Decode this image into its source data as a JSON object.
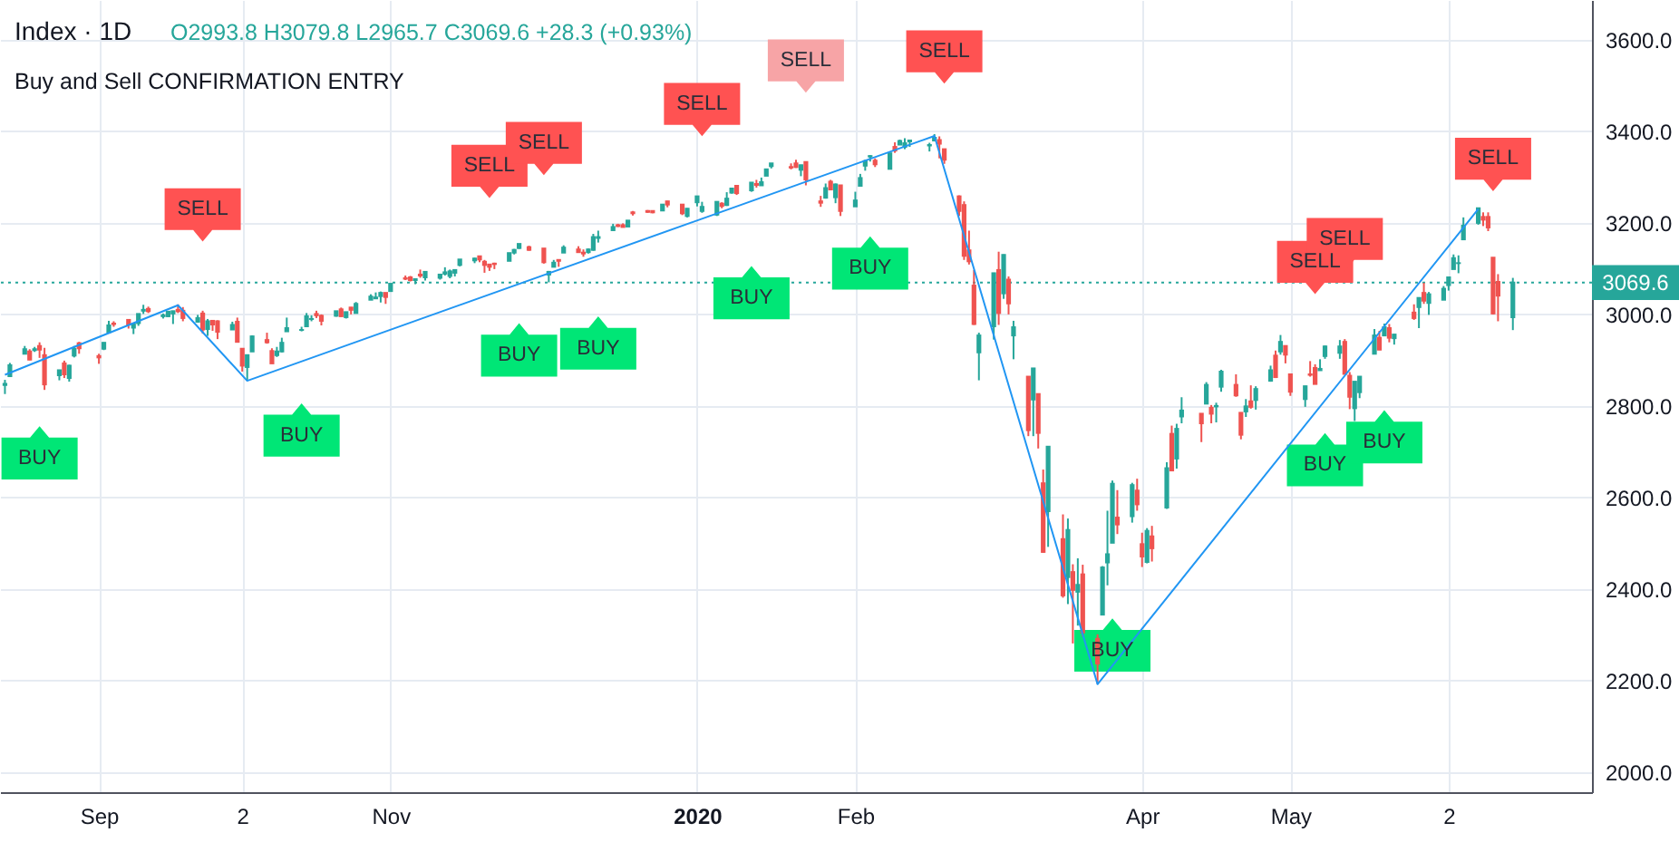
{
  "chart_data": {
    "type": "candlestick",
    "title": "Index · 1D",
    "subtitle": "Buy and Sell CONFIRMATION ENTRY",
    "annotations": [
      "O2993.8 H3079.8 L2965.7 C3069.6 +28.3 (+0.93%)"
    ],
    "x": [
      "2019-08-15",
      "2019-08-16",
      "2019-08-19",
      "2019-08-20",
      "2019-08-21",
      "2019-08-22",
      "2019-08-23",
      "2019-08-26",
      "2019-08-27",
      "2019-08-28",
      "2019-08-29",
      "2019-08-30",
      "2019-09-03",
      "2019-09-04",
      "2019-09-05",
      "2019-09-06",
      "2019-09-09",
      "2019-09-10",
      "2019-09-11",
      "2019-09-12",
      "2019-09-13",
      "2019-09-16",
      "2019-09-17",
      "2019-09-18",
      "2019-09-19",
      "2019-09-20",
      "2019-09-23",
      "2019-09-24",
      "2019-09-25",
      "2019-09-26",
      "2019-09-27",
      "2019-09-30",
      "2019-10-01",
      "2019-10-02",
      "2019-10-03",
      "2019-10-04",
      "2019-10-07",
      "2019-10-08",
      "2019-10-09",
      "2019-10-10",
      "2019-10-11",
      "2019-10-14",
      "2019-10-15",
      "2019-10-16",
      "2019-10-17",
      "2019-10-18",
      "2019-10-21",
      "2019-10-22",
      "2019-10-23",
      "2019-10-24",
      "2019-10-25",
      "2019-10-28",
      "2019-10-29",
      "2019-10-30",
      "2019-10-31",
      "2019-11-01",
      "2019-11-04",
      "2019-11-05",
      "2019-11-06",
      "2019-11-07",
      "2019-11-08",
      "2019-11-11",
      "2019-11-12",
      "2019-11-13",
      "2019-11-14",
      "2019-11-15",
      "2019-11-18",
      "2019-11-19",
      "2019-11-20",
      "2019-11-21",
      "2019-11-22",
      "2019-11-25",
      "2019-11-26",
      "2019-11-27",
      "2019-11-29",
      "2019-12-02",
      "2019-12-03",
      "2019-12-04",
      "2019-12-05",
      "2019-12-06",
      "2019-12-09",
      "2019-12-10",
      "2019-12-11",
      "2019-12-12",
      "2019-12-13",
      "2019-12-16",
      "2019-12-17",
      "2019-12-18",
      "2019-12-19",
      "2019-12-20",
      "2019-12-23",
      "2019-12-24",
      "2019-12-26",
      "2019-12-27",
      "2019-12-30",
      "2019-12-31",
      "2020-01-02",
      "2020-01-03",
      "2020-01-06",
      "2020-01-07",
      "2020-01-08",
      "2020-01-09",
      "2020-01-10",
      "2020-01-13",
      "2020-01-14",
      "2020-01-15",
      "2020-01-16",
      "2020-01-17",
      "2020-01-21",
      "2020-01-22",
      "2020-01-23",
      "2020-01-24",
      "2020-01-27",
      "2020-01-28",
      "2020-01-29",
      "2020-01-30",
      "2020-01-31",
      "2020-02-03",
      "2020-02-04",
      "2020-02-05",
      "2020-02-06",
      "2020-02-07",
      "2020-02-10",
      "2020-02-11",
      "2020-02-12",
      "2020-02-13",
      "2020-02-14",
      "2020-02-18",
      "2020-02-19",
      "2020-02-20",
      "2020-02-21",
      "2020-02-24",
      "2020-02-25",
      "2020-02-26",
      "2020-02-27",
      "2020-02-28",
      "2020-03-02",
      "2020-03-03",
      "2020-03-04",
      "2020-03-05",
      "2020-03-06",
      "2020-03-09",
      "2020-03-10",
      "2020-03-11",
      "2020-03-12",
      "2020-03-13",
      "2020-03-16",
      "2020-03-17",
      "2020-03-18",
      "2020-03-19",
      "2020-03-20",
      "2020-03-23",
      "2020-03-24",
      "2020-03-25",
      "2020-03-26",
      "2020-03-27",
      "2020-03-30",
      "2020-03-31",
      "2020-04-01",
      "2020-04-02",
      "2020-04-03",
      "2020-04-06",
      "2020-04-07",
      "2020-04-08",
      "2020-04-09",
      "2020-04-13",
      "2020-04-14",
      "2020-04-15",
      "2020-04-16",
      "2020-04-17",
      "2020-04-20",
      "2020-04-21",
      "2020-04-22",
      "2020-04-23",
      "2020-04-24",
      "2020-04-27",
      "2020-04-28",
      "2020-04-29",
      "2020-04-30",
      "2020-05-01",
      "2020-05-04",
      "2020-05-05",
      "2020-05-06",
      "2020-05-07",
      "2020-05-08",
      "2020-05-11",
      "2020-05-12",
      "2020-05-13",
      "2020-05-14",
      "2020-05-15",
      "2020-05-18",
      "2020-05-19",
      "2020-05-20",
      "2020-05-21",
      "2020-05-22",
      "2020-05-26",
      "2020-05-27",
      "2020-05-28",
      "2020-05-29",
      "2020-06-01",
      "2020-06-02",
      "2020-06-03",
      "2020-06-04",
      "2020-06-05",
      "2020-06-08",
      "2020-06-09",
      "2020-06-10",
      "2020-06-11",
      "2020-06-12",
      "2020-06-15"
    ],
    "ohlc": [
      [
        2846,
        2857,
        2826,
        2848
      ],
      [
        2865,
        2894,
        2865,
        2889
      ],
      [
        2914,
        2931,
        2914,
        2924
      ],
      [
        2919,
        2924,
        2900,
        2901
      ],
      [
        2922,
        2929,
        2918,
        2924
      ],
      [
        2931,
        2939,
        2905,
        2923
      ],
      [
        2911,
        2927,
        2835,
        2847
      ],
      [
        2867,
        2879,
        2856,
        2878
      ],
      [
        2893,
        2899,
        2861,
        2869
      ],
      [
        2861,
        2890,
        2853,
        2888
      ],
      [
        2910,
        2931,
        2906,
        2925
      ],
      [
        2937,
        2940,
        2914,
        2926
      ],
      [
        2909,
        2914,
        2892,
        2906
      ],
      [
        2925,
        2939,
        2922,
        2938
      ],
      [
        2961,
        2986,
        2961,
        2976
      ],
      [
        2980,
        2985,
        2973,
        2979
      ],
      [
        2988,
        2989,
        2969,
        2978
      ],
      [
        2971,
        2979,
        2957,
        2979
      ],
      [
        2981,
        3001,
        2975,
        3001
      ],
      [
        3008,
        3021,
        3001,
        3010
      ],
      [
        3012,
        3017,
        3003,
        3007
      ],
      [
        2996,
        3002,
        2991,
        2998
      ],
      [
        2996,
        3006,
        2994,
        3006
      ],
      [
        3002,
        3008,
        2979,
        3007
      ],
      [
        3010,
        3022,
        3003,
        3007
      ],
      [
        3008,
        3016,
        2985,
        2992
      ],
      [
        2984,
        2999,
        2982,
        2992
      ],
      [
        3002,
        3008,
        2958,
        2967
      ],
      [
        2968,
        2990,
        2953,
        2985
      ],
      [
        2986,
        2987,
        2964,
        2978
      ],
      [
        2985,
        2987,
        2946,
        2962
      ],
      [
        2967,
        2984,
        2967,
        2977
      ],
      [
        2984,
        2993,
        2939,
        2940
      ],
      [
        2925,
        2925,
        2875,
        2888
      ],
      [
        2885,
        2911,
        2856,
        2911
      ],
      [
        2919,
        2954,
        2919,
        2952
      ],
      [
        2944,
        2960,
        2936,
        2939
      ],
      [
        2920,
        2926,
        2893,
        2893
      ],
      [
        2911,
        2929,
        2907,
        2919
      ],
      [
        2919,
        2949,
        2917,
        2938
      ],
      [
        2963,
        2993,
        2963,
        2970
      ],
      [
        2966,
        2973,
        2963,
        2966
      ],
      [
        2974,
        3003,
        2974,
        2996
      ],
      [
        2990,
        2998,
        2985,
        2990
      ],
      [
        3001,
        3008,
        2992,
        2998
      ],
      [
        2997,
        3000,
        2976,
        2986
      ],
      [
        2997,
        3007,
        2995,
        3007
      ],
      [
        3011,
        3015,
        2995,
        2996
      ],
      [
        2994,
        3005,
        2991,
        3005
      ],
      [
        3015,
        3016,
        3000,
        3010
      ],
      [
        3003,
        3027,
        3002,
        3023
      ],
      [
        3032,
        3044,
        3032,
        3039
      ],
      [
        3035,
        3048,
        3035,
        3037
      ],
      [
        3040,
        3050,
        3026,
        3047
      ],
      [
        3047,
        3047,
        3023,
        3038
      ],
      [
        3051,
        3067,
        3051,
        3067
      ],
      [
        3079,
        3085,
        3075,
        3078
      ],
      [
        3081,
        3084,
        3072,
        3075
      ],
      [
        3075,
        3078,
        3066,
        3077
      ],
      [
        3087,
        3098,
        3080,
        3085
      ],
      [
        3081,
        3093,
        3074,
        3093
      ],
      [
        3080,
        3088,
        3076,
        3087
      ],
      [
        3089,
        3103,
        3085,
        3092
      ],
      [
        3084,
        3098,
        3079,
        3094
      ],
      [
        3091,
        3098,
        3083,
        3097
      ],
      [
        3108,
        3120,
        3105,
        3120
      ],
      [
        3118,
        3124,
        3112,
        3122
      ],
      [
        3127,
        3128,
        3114,
        3120
      ],
      [
        3115,
        3119,
        3091,
        3108
      ],
      [
        3109,
        3110,
        3095,
        3104
      ],
      [
        3111,
        3113,
        3099,
        3110
      ],
      [
        3117,
        3134,
        3117,
        3134
      ],
      [
        3135,
        3143,
        3131,
        3141
      ],
      [
        3145,
        3154,
        3143,
        3154
      ],
      [
        3147,
        3150,
        3139,
        3141
      ],
      [
        3144,
        3144,
        3111,
        3114
      ],
      [
        3087,
        3095,
        3070,
        3093
      ],
      [
        3104,
        3119,
        3103,
        3113
      ],
      [
        3119,
        3119,
        3104,
        3117
      ],
      [
        3135,
        3151,
        3135,
        3146
      ],
      [
        3142,
        3149,
        3136,
        3136
      ],
      [
        3135,
        3142,
        3126,
        3133
      ],
      [
        3136,
        3144,
        3133,
        3142
      ],
      [
        3141,
        3176,
        3139,
        3169
      ],
      [
        3167,
        3183,
        3157,
        3169
      ],
      [
        3184,
        3198,
        3184,
        3191
      ],
      [
        3195,
        3198,
        3191,
        3193
      ],
      [
        3195,
        3199,
        3191,
        3191
      ],
      [
        3192,
        3206,
        3192,
        3205
      ],
      [
        3223,
        3226,
        3216,
        3221
      ],
      [
        3226,
        3228,
        3222,
        3224
      ],
      [
        3226,
        3226,
        3221,
        3223
      ],
      [
        3227,
        3240,
        3227,
        3240
      ],
      [
        3247,
        3248,
        3234,
        3240
      ],
      [
        3240,
        3241,
        3217,
        3221
      ],
      [
        3215,
        3232,
        3212,
        3231
      ],
      [
        3245,
        3258,
        3236,
        3258
      ],
      [
        3226,
        3246,
        3222,
        3235
      ],
      [
        3218,
        3247,
        3215,
        3246
      ],
      [
        3242,
        3245,
        3232,
        3237
      ],
      [
        3239,
        3267,
        3237,
        3253
      ],
      [
        3266,
        3276,
        3264,
        3275
      ],
      [
        3281,
        3283,
        3261,
        3265
      ],
      [
        3271,
        3288,
        3268,
        3288
      ],
      [
        3285,
        3294,
        3277,
        3283
      ],
      [
        3282,
        3299,
        3281,
        3289
      ],
      [
        3303,
        3317,
        3303,
        3317
      ],
      [
        3324,
        3330,
        3319,
        3330
      ],
      [
        3322,
        3330,
        3317,
        3321
      ],
      [
        3330,
        3338,
        3320,
        3322
      ],
      [
        3316,
        3327,
        3302,
        3326
      ],
      [
        3333,
        3333,
        3282,
        3295
      ],
      [
        3247,
        3259,
        3235,
        3244
      ],
      [
        3255,
        3286,
        3253,
        3276
      ],
      [
        3290,
        3294,
        3272,
        3273
      ],
      [
        3256,
        3286,
        3243,
        3284
      ],
      [
        3282,
        3282,
        3215,
        3226
      ],
      [
        3236,
        3268,
        3236,
        3249
      ],
      [
        3281,
        3307,
        3281,
        3298
      ],
      [
        3325,
        3338,
        3314,
        3335
      ],
      [
        3345,
        3348,
        3334,
        3346
      ],
      [
        3336,
        3341,
        3322,
        3328
      ],
      [
        3318,
        3352,
        3318,
        3352
      ],
      [
        3366,
        3376,
        3353,
        3358
      ],
      [
        3371,
        3382,
        3370,
        3379
      ],
      [
        3366,
        3385,
        3361,
        3374
      ],
      [
        3378,
        3381,
        3366,
        3380
      ],
      [
        3369,
        3375,
        3356,
        3370
      ],
      [
        3380,
        3394,
        3379,
        3386
      ],
      [
        3381,
        3389,
        3341,
        3373
      ],
      [
        3361,
        3361,
        3329,
        3338
      ],
      [
        3258,
        3260,
        3215,
        3226
      ],
      [
        3239,
        3247,
        3119,
        3128
      ],
      [
        3140,
        3183,
        3109,
        3116
      ],
      [
        3063,
        3097,
        2977,
        2979
      ],
      [
        2917,
        2960,
        2856,
        2954
      ],
      [
        2974,
        3091,
        2945,
        3090
      ],
      [
        3097,
        3137,
        2977,
        3003
      ],
      [
        3046,
        3131,
        3034,
        3130
      ],
      [
        3076,
        3083,
        3000,
        3024
      ],
      [
        2954,
        2986,
        2902,
        2972
      ],
      [
        2864,
        2864,
        2734,
        2747
      ],
      [
        2814,
        2883,
        2734,
        2882
      ],
      [
        2826,
        2826,
        2707,
        2741
      ],
      [
        2631,
        2661,
        2479,
        2481
      ],
      [
        2570,
        2711,
        2492,
        2711
      ],
      [
        2509,
        2563,
        2381,
        2386
      ],
      [
        2426,
        2554,
        2367,
        2529
      ],
      [
        2437,
        2454,
        2281,
        2398
      ],
      [
        2394,
        2467,
        2320,
        2409
      ],
      [
        2432,
        2453,
        2296,
        2305
      ],
      [
        2291,
        2301,
        2192,
        2237
      ],
      [
        2344,
        2450,
        2344,
        2447
      ],
      [
        2458,
        2571,
        2408,
        2476
      ],
      [
        2501,
        2637,
        2501,
        2630
      ],
      [
        2556,
        2616,
        2520,
        2541
      ],
      [
        2559,
        2632,
        2545,
        2627
      ],
      [
        2615,
        2641,
        2571,
        2585
      ],
      [
        2498,
        2523,
        2448,
        2471
      ],
      [
        2459,
        2533,
        2456,
        2527
      ],
      [
        2515,
        2538,
        2460,
        2489
      ],
      [
        2578,
        2677,
        2575,
        2664
      ],
      [
        2739,
        2757,
        2658,
        2659
      ],
      [
        2685,
        2761,
        2663,
        2750
      ],
      [
        2777,
        2819,
        2762,
        2790
      ],
      [
        2783,
        2783,
        2721,
        2762
      ],
      [
        2805,
        2852,
        2805,
        2846
      ],
      [
        2796,
        2802,
        2762,
        2783
      ],
      [
        2799,
        2807,
        2764,
        2800
      ],
      [
        2842,
        2879,
        2831,
        2875
      ],
      [
        2846,
        2869,
        2820,
        2823
      ],
      [
        2785,
        2786,
        2727,
        2737
      ],
      [
        2788,
        2815,
        2776,
        2799
      ],
      [
        2810,
        2845,
        2794,
        2798
      ],
      [
        2813,
        2843,
        2792,
        2837
      ],
      [
        2855,
        2888,
        2853,
        2878
      ],
      [
        2910,
        2921,
        2861,
        2863
      ],
      [
        2919,
        2955,
        2912,
        2940
      ],
      [
        2931,
        2931,
        2893,
        2912
      ],
      [
        2869,
        2869,
        2822,
        2831
      ],
      [
        2815,
        2844,
        2798,
        2843
      ],
      [
        2869,
        2898,
        2864,
        2868
      ],
      [
        2883,
        2891,
        2848,
        2848
      ],
      [
        2878,
        2902,
        2877,
        2881
      ],
      [
        2909,
        2932,
        2903,
        2930
      ],
      [
        2916,
        2944,
        2903,
        2930
      ],
      [
        2940,
        2946,
        2870,
        2870
      ],
      [
        2866,
        2874,
        2793,
        2820
      ],
      [
        2795,
        2853,
        2767,
        2853
      ],
      [
        2830,
        2865,
        2817,
        2864
      ],
      [
        2914,
        2968,
        2914,
        2954
      ],
      [
        2949,
        2964,
        2922,
        2923
      ],
      [
        2954,
        2980,
        2954,
        2972
      ],
      [
        2970,
        2979,
        2939,
        2949
      ],
      [
        2948,
        2957,
        2934,
        2956
      ],
      [
        3004,
        3022,
        2988,
        2992
      ],
      [
        3016,
        3036,
        2970,
        3036
      ],
      [
        3047,
        3069,
        3023,
        3030
      ],
      [
        3025,
        3049,
        2999,
        3044
      ],
      [
        3032,
        3062,
        3032,
        3056
      ],
      [
        3064,
        3081,
        3052,
        3081
      ],
      [
        3099,
        3131,
        3099,
        3123
      ],
      [
        3112,
        3129,
        3090,
        3112
      ],
      [
        3164,
        3212,
        3164,
        3194
      ],
      [
        3200,
        3233,
        3196,
        3232
      ],
      [
        3213,
        3223,
        3193,
        3207
      ],
      [
        3213,
        3223,
        3182,
        3190
      ],
      [
        3124,
        3124,
        3000,
        3002
      ],
      [
        3071,
        3088,
        2985,
        3041
      ],
      [
        2993.8,
        3079.8,
        2965.7,
        3069.6
      ]
    ],
    "colors": [
      "#26a69a",
      "#26a69a",
      "#26a69a",
      "#ef5350",
      "#26a69a",
      "#ef5350",
      "#ef5350",
      "#26a69a",
      "#ef5350",
      "#26a69a",
      "#26a69a",
      "#ef5350",
      "#ef5350",
      "#26a69a",
      "#26a69a",
      "#ef5350",
      "#ef5350",
      "#26a69a",
      "#26a69a",
      "#26a69a",
      "#ef5350",
      "#26a69a",
      "#26a69a",
      "#26a69a",
      "#ef5350",
      "#ef5350",
      "#26a69a",
      "#ef5350",
      "#26a69a",
      "#ef5350",
      "#ef5350",
      "#26a69a",
      "#ef5350",
      "#ef5350",
      "#26a69a",
      "#26a69a",
      "#ef5350",
      "#ef5350",
      "#26a69a",
      "#26a69a",
      "#26a69a",
      "#26a69a",
      "#26a69a",
      "#26a69a",
      "#ef5350",
      "#ef5350",
      "#26a69a",
      "#ef5350",
      "#26a69a",
      "#ef5350",
      "#26a69a",
      "#26a69a",
      "#26a69a",
      "#26a69a",
      "#ef5350",
      "#26a69a",
      "#ef5350",
      "#ef5350",
      "#26a69a",
      "#ef5350",
      "#26a69a",
      "#26a69a",
      "#26a69a",
      "#26a69a",
      "#26a69a",
      "#26a69a",
      "#26a69a",
      "#ef5350",
      "#ef5350",
      "#ef5350",
      "#ef5350",
      "#26a69a",
      "#26a69a",
      "#26a69a",
      "#ef5350",
      "#ef5350",
      "#26a69a",
      "#26a69a",
      "#ef5350",
      "#26a69a",
      "#ef5350",
      "#ef5350",
      "#26a69a",
      "#26a69a",
      "#26a69a",
      "#26a69a",
      "#ef5350",
      "#ef5350",
      "#26a69a",
      "#ef5350",
      "#ef5350",
      "#ef5350",
      "#26a69a",
      "#ef5350",
      "#ef5350",
      "#26a69a",
      "#26a69a",
      "#26a69a",
      "#26a69a",
      "#ef5350",
      "#26a69a",
      "#26a69a",
      "#ef5350",
      "#26a69a",
      "#ef5350",
      "#26a69a",
      "#26a69a",
      "#26a69a",
      "#ef5350",
      "#ef5350",
      "#26a69a",
      "#ef5350",
      "#ef5350",
      "#26a69a",
      "#ef5350",
      "#26a69a",
      "#ef5350",
      "#26a69a",
      "#26a69a",
      "#26a69a",
      "#26a69a",
      "#ef5350",
      "#26a69a",
      "#ef5350",
      "#26a69a",
      "#26a69a",
      "#26a69a",
      "#26a69a",
      "#26a69a",
      "#ef5350",
      "#ef5350",
      "#ef5350",
      "#ef5350",
      "#ef5350",
      "#ef5350",
      "#26a69a",
      "#26a69a",
      "#ef5350",
      "#26a69a",
      "#ef5350",
      "#26a69a",
      "#ef5350",
      "#26a69a",
      "#ef5350",
      "#ef5350",
      "#26a69a",
      "#ef5350",
      "#26a69a",
      "#ef5350",
      "#26a69a",
      "#ef5350",
      "#ef5350",
      "#26a69a",
      "#26a69a",
      "#26a69a",
      "#ef5350",
      "#26a69a",
      "#ef5350",
      "#ef5350",
      "#26a69a",
      "#ef5350",
      "#26a69a",
      "#ef5350",
      "#26a69a",
      "#26a69a",
      "#ef5350",
      "#26a69a",
      "#ef5350",
      "#26a69a",
      "#26a69a",
      "#ef5350",
      "#ef5350",
      "#26a69a",
      "#ef5350",
      "#26a69a",
      "#26a69a",
      "#ef5350",
      "#26a69a",
      "#ef5350",
      "#ef5350",
      "#26a69a",
      "#ef5350",
      "#ef5350",
      "#26a69a",
      "#26a69a",
      "#26a69a",
      "#ef5350",
      "#ef5350",
      "#26a69a",
      "#26a69a",
      "#26a69a",
      "#ef5350",
      "#26a69a",
      "#ef5350",
      "#26a69a",
      "#ef5350",
      "#26a69a",
      "#ef5350",
      "#26a69a",
      "#26a69a",
      "#26a69a",
      "#26a69a",
      "#26a69a",
      "#26a69a",
      "#26a69a",
      "#ef5350",
      "#ef5350",
      "#ef5350",
      "#ef5350",
      "#26a69a"
    ],
    "xlim": [
      "2019-08-14",
      "2020-07-01"
    ],
    "xticks": [
      {
        "value": "2019-09-03",
        "label": "Sep"
      },
      {
        "value": "2019-10-02",
        "label": "2"
      },
      {
        "value": "2019-11-01",
        "label": "Nov"
      },
      {
        "value": "2020-01-02",
        "label": "2020"
      },
      {
        "value": "2020-02-03",
        "label": "Feb"
      },
      {
        "value": "2020-04-01",
        "label": "Apr"
      },
      {
        "value": "2020-05-01",
        "label": "May"
      },
      {
        "value": "2020-06-02",
        "label": "2"
      }
    ],
    "ylim": [
      1956,
      3687
    ],
    "yticks": [
      {
        "value": 2000,
        "label": "2000.0"
      },
      {
        "value": 2200,
        "label": "2200.0"
      },
      {
        "value": 2400,
        "label": "2400.0"
      },
      {
        "value": 2600,
        "label": "2600.0"
      },
      {
        "value": 2800,
        "label": "2800.0"
      },
      {
        "value": 3000,
        "label": "3000.0"
      },
      {
        "value": 3200,
        "label": "3200.0"
      },
      {
        "value": 3400,
        "label": "3400.0"
      },
      {
        "value": 3600,
        "label": "3600.0"
      }
    ],
    "grid": true,
    "ref_lines": [
      {
        "axis": "y",
        "value": 3069.6,
        "label": "3069.6",
        "color": "#26a69a",
        "line_style": "dotted"
      }
    ],
    "series": [
      {
        "type": "line",
        "color": "#2196f3",
        "x": [
          "2019-08-15",
          "2019-09-19",
          "2019-10-03",
          "2020-02-19",
          "2020-03-23",
          "2020-06-08"
        ],
        "values": [
          2868,
          3020,
          2855,
          3390,
          2192,
          3230
        ]
      },
      {
        "type": "scatter",
        "name": "SELL",
        "marker": "square",
        "color": "#ff5252",
        "colors": [
          null,
          null,
          null,
          null,
          "#f7a4a6",
          null,
          null,
          null,
          null
        ],
        "x": [
          "2019-09-24",
          "2019-11-21",
          "2019-12-02",
          "2020-01-03",
          "2020-01-24",
          "2020-02-21",
          "2020-05-06",
          "2020-05-12",
          "2020-06-11"
        ],
        "values": [
          3230,
          3325,
          3375,
          3460,
          3555,
          3575,
          3115,
          3165,
          3340
        ]
      },
      {
        "type": "scatter",
        "name": "BUY",
        "marker": "square",
        "color": "#00e676",
        "x": [
          "2019-08-22",
          "2019-10-14",
          "2019-11-27",
          "2019-12-13",
          "2020-01-13",
          "2020-02-06",
          "2020-03-26",
          "2020-05-08",
          "2020-05-20"
        ],
        "values": [
          2685,
          2735,
          2910,
          2925,
          3035,
          3100,
          2265,
          2670,
          2720
        ]
      }
    ]
  }
}
